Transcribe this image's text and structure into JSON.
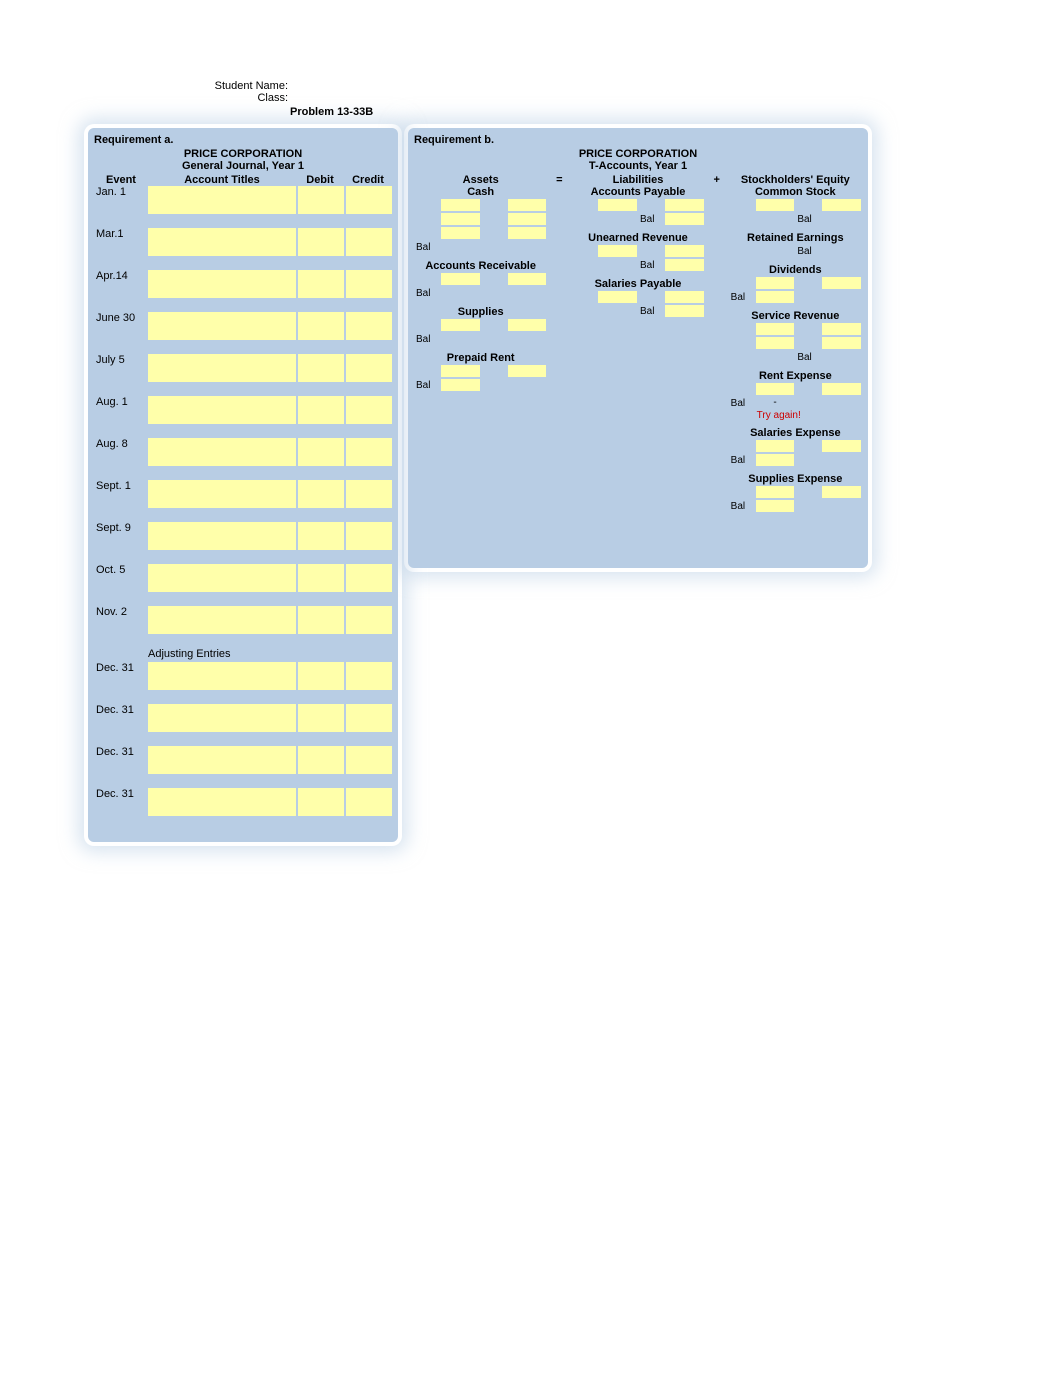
{
  "header": {
    "student_label": "Student Name:",
    "class_label": "Class:",
    "problem": "Problem 13-33B"
  },
  "reqA": {
    "label": "Requirement a.",
    "corp": "PRICE CORPORATION",
    "sub": "General Journal, Year 1",
    "cols": {
      "event": "Event",
      "acct": "Account Titles",
      "debit": "Debit",
      "credit": "Credit"
    },
    "dates": [
      "Jan. 1",
      "Mar.1",
      "Apr.14",
      "June 30",
      "July 5",
      "Aug. 1",
      "Aug. 8",
      "Sept. 1",
      "Sept. 9",
      "Oct. 5",
      "Nov. 2"
    ],
    "adjusting_label": "Adjusting Entries",
    "adj_dates": [
      "Dec. 31",
      "Dec. 31",
      "Dec. 31",
      "Dec. 31"
    ]
  },
  "reqB": {
    "label": "Requirement b.",
    "corp": "PRICE CORPORATION",
    "sub": "T-Accounts, Year 1",
    "heads": {
      "assets": "Assets",
      "eq": "=",
      "liab": "Liabilities",
      "plus": "+",
      "se": "Stockholders' Equity"
    },
    "bal": "Bal",
    "try_again": "Try again!",
    "dash": "-",
    "assets": {
      "cash": "Cash",
      "ar": "Accounts Receivable",
      "supplies": "Supplies",
      "prerent": "Prepaid Rent"
    },
    "liab": {
      "ap": "Accounts Payable",
      "unrev": "Unearned Revenue",
      "salpay": "Salaries Payable"
    },
    "se": {
      "cs": "Common Stock",
      "re": "Retained Earnings",
      "div": "Dividends",
      "srev": "Service Revenue",
      "rentx": "Rent Expense",
      "salx": "Salaries Expense",
      "supx": "Supplies Expense"
    }
  },
  "colors": {
    "panel": "#b8cde4",
    "highlight": "#ffffaa",
    "error": "#cc0000"
  }
}
